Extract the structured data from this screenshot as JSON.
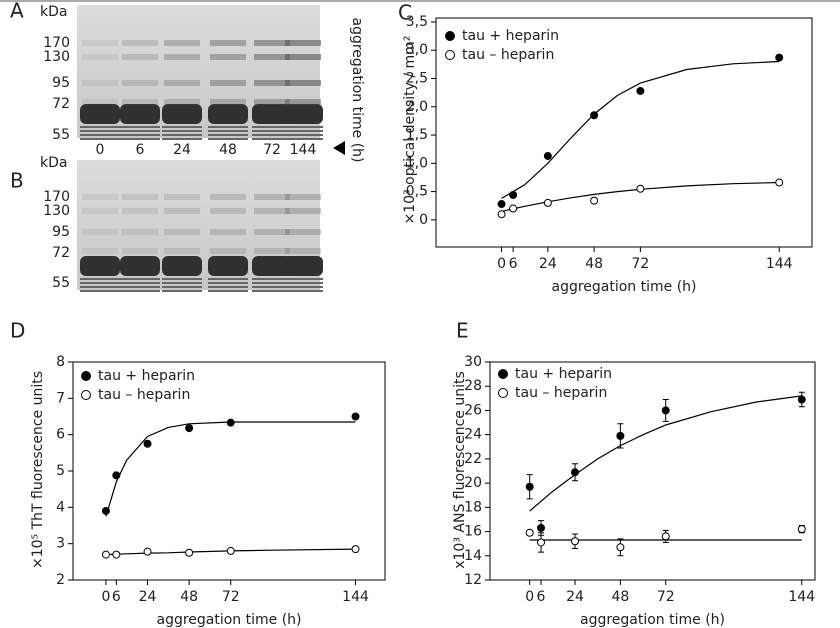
{
  "gels": [
    {
      "label": "A",
      "unit": "kDa",
      "markers": [
        170,
        130,
        95,
        72,
        55
      ],
      "lanes": [
        0,
        6,
        24,
        48,
        72,
        144
      ]
    },
    {
      "label": "B",
      "unit": "kDa",
      "markers": [
        170,
        130,
        95,
        72,
        55
      ]
    }
  ],
  "gel_axis_label": "aggregation time (h)",
  "chart_data": [
    {
      "type": "scatter",
      "label": "C",
      "xlabel": "aggregation time (h)",
      "ylabel": "×10³ optical density / mm²",
      "x": [
        0,
        6,
        24,
        48,
        72,
        144
      ],
      "xlim": [
        -34,
        161
      ],
      "xticks": [
        {
          "value": 0,
          "label": "0"
        },
        {
          "value": 6,
          "label": "6"
        },
        24,
        48,
        72,
        144
      ],
      "ylim": [
        -0.48,
        3.57
      ],
      "yticks": [
        0,
        {
          "value": 0.5,
          "label": "0,5"
        },
        {
          "value": 1,
          "label": "1,0"
        },
        {
          "value": 1.5,
          "label": "1,5"
        },
        {
          "value": 2,
          "label": "2,0"
        },
        {
          "value": 2.5,
          "label": "2,5"
        },
        {
          "value": 3,
          "label": "3,0"
        },
        {
          "value": 3.5,
          "label": "3,5"
        }
      ],
      "legend": "upper left",
      "fit_x": [
        0,
        12,
        24,
        36,
        48,
        60,
        72,
        96,
        120,
        144
      ],
      "series": [
        {
          "name": "tau + heparin",
          "color": "#000000",
          "marker": "filled",
          "values": [
            0.28,
            0.44,
            1.13,
            1.85,
            2.28,
            2.87
          ],
          "fit": [
            0.38,
            0.62,
            1.0,
            1.45,
            1.87,
            2.2,
            2.42,
            2.66,
            2.76,
            2.8
          ]
        },
        {
          "name": "tau – heparin",
          "color": "#000000",
          "marker": "open",
          "values": [
            0.1,
            0.2,
            0.3,
            0.34,
            0.55,
            0.66
          ],
          "fit": [
            0.15,
            0.24,
            0.32,
            0.39,
            0.45,
            0.5,
            0.54,
            0.6,
            0.64,
            0.66
          ]
        }
      ]
    },
    {
      "type": "scatter",
      "label": "D",
      "xlabel": "aggregation time (h)",
      "ylabel": "×10⁵ ThT fluorescence units",
      "x": [
        0,
        6,
        24,
        48,
        72,
        144
      ],
      "xlim": [
        -19,
        161
      ],
      "xticks": [
        {
          "value": 0,
          "label": "0"
        },
        {
          "value": 6,
          "label": "6"
        },
        24,
        48,
        72,
        144
      ],
      "ylim": [
        2,
        8
      ],
      "yticks": [
        2,
        3,
        4,
        5,
        6,
        7,
        8
      ],
      "legend": "upper left",
      "fit_x": [
        0,
        6,
        12,
        24,
        36,
        48,
        72,
        96,
        144
      ],
      "series": [
        {
          "name": "tau  +  heparin",
          "color": "#000000",
          "marker": "filled",
          "values": [
            3.9,
            4.88,
            5.75,
            6.18,
            6.33,
            6.5
          ],
          "fit": [
            3.75,
            4.7,
            5.3,
            5.95,
            6.2,
            6.3,
            6.35,
            6.35,
            6.35
          ]
        },
        {
          "name": "tau  –  heparin",
          "color": "#000000",
          "marker": "open",
          "values": [
            2.7,
            2.7,
            2.78,
            2.75,
            2.8,
            2.85
          ],
          "fit": [
            2.7,
            2.71,
            2.72,
            2.74,
            2.75,
            2.77,
            2.8,
            2.82,
            2.85
          ]
        }
      ]
    },
    {
      "type": "scatter",
      "label": "E",
      "xlabel": "aggregation time (h)",
      "ylabel": "x10³ ANS fluorescence units",
      "x": [
        0,
        6,
        24,
        48,
        72,
        144
      ],
      "xlim": [
        -21,
        151
      ],
      "xticks": [
        {
          "value": 0,
          "label": "0"
        },
        {
          "value": 6,
          "label": "6"
        },
        24,
        48,
        72,
        144
      ],
      "ylim": [
        12,
        30
      ],
      "yticks": [
        12,
        14,
        16,
        18,
        20,
        22,
        24,
        26,
        28,
        30
      ],
      "legend": "upper left",
      "fit_x": [
        0,
        12,
        24,
        36,
        48,
        60,
        72,
        96,
        120,
        144
      ],
      "series": [
        {
          "name": "tau  +  heparin",
          "color": "#000000",
          "marker": "filled",
          "values": [
            19.7,
            16.3,
            20.9,
            23.9,
            26,
            26.9
          ],
          "errors": [
            1.0,
            0.6,
            0.7,
            1.0,
            0.9,
            0.6
          ],
          "fit": [
            17.7,
            19.3,
            20.7,
            22.0,
            23.1,
            24.0,
            24.8,
            25.9,
            26.7,
            27.2
          ]
        },
        {
          "name": "tau  –  heparin",
          "color": "#000000",
          "marker": "open",
          "values": [
            15.9,
            15.1,
            15.2,
            14.7,
            15.6,
            16.2
          ],
          "errors": [
            0.2,
            0.8,
            0.6,
            0.7,
            0.5,
            0.3
          ],
          "fit": [
            15.3,
            15.3,
            15.3,
            15.3,
            15.3,
            15.3,
            15.3,
            15.3,
            15.3,
            15.3
          ]
        }
      ]
    }
  ]
}
